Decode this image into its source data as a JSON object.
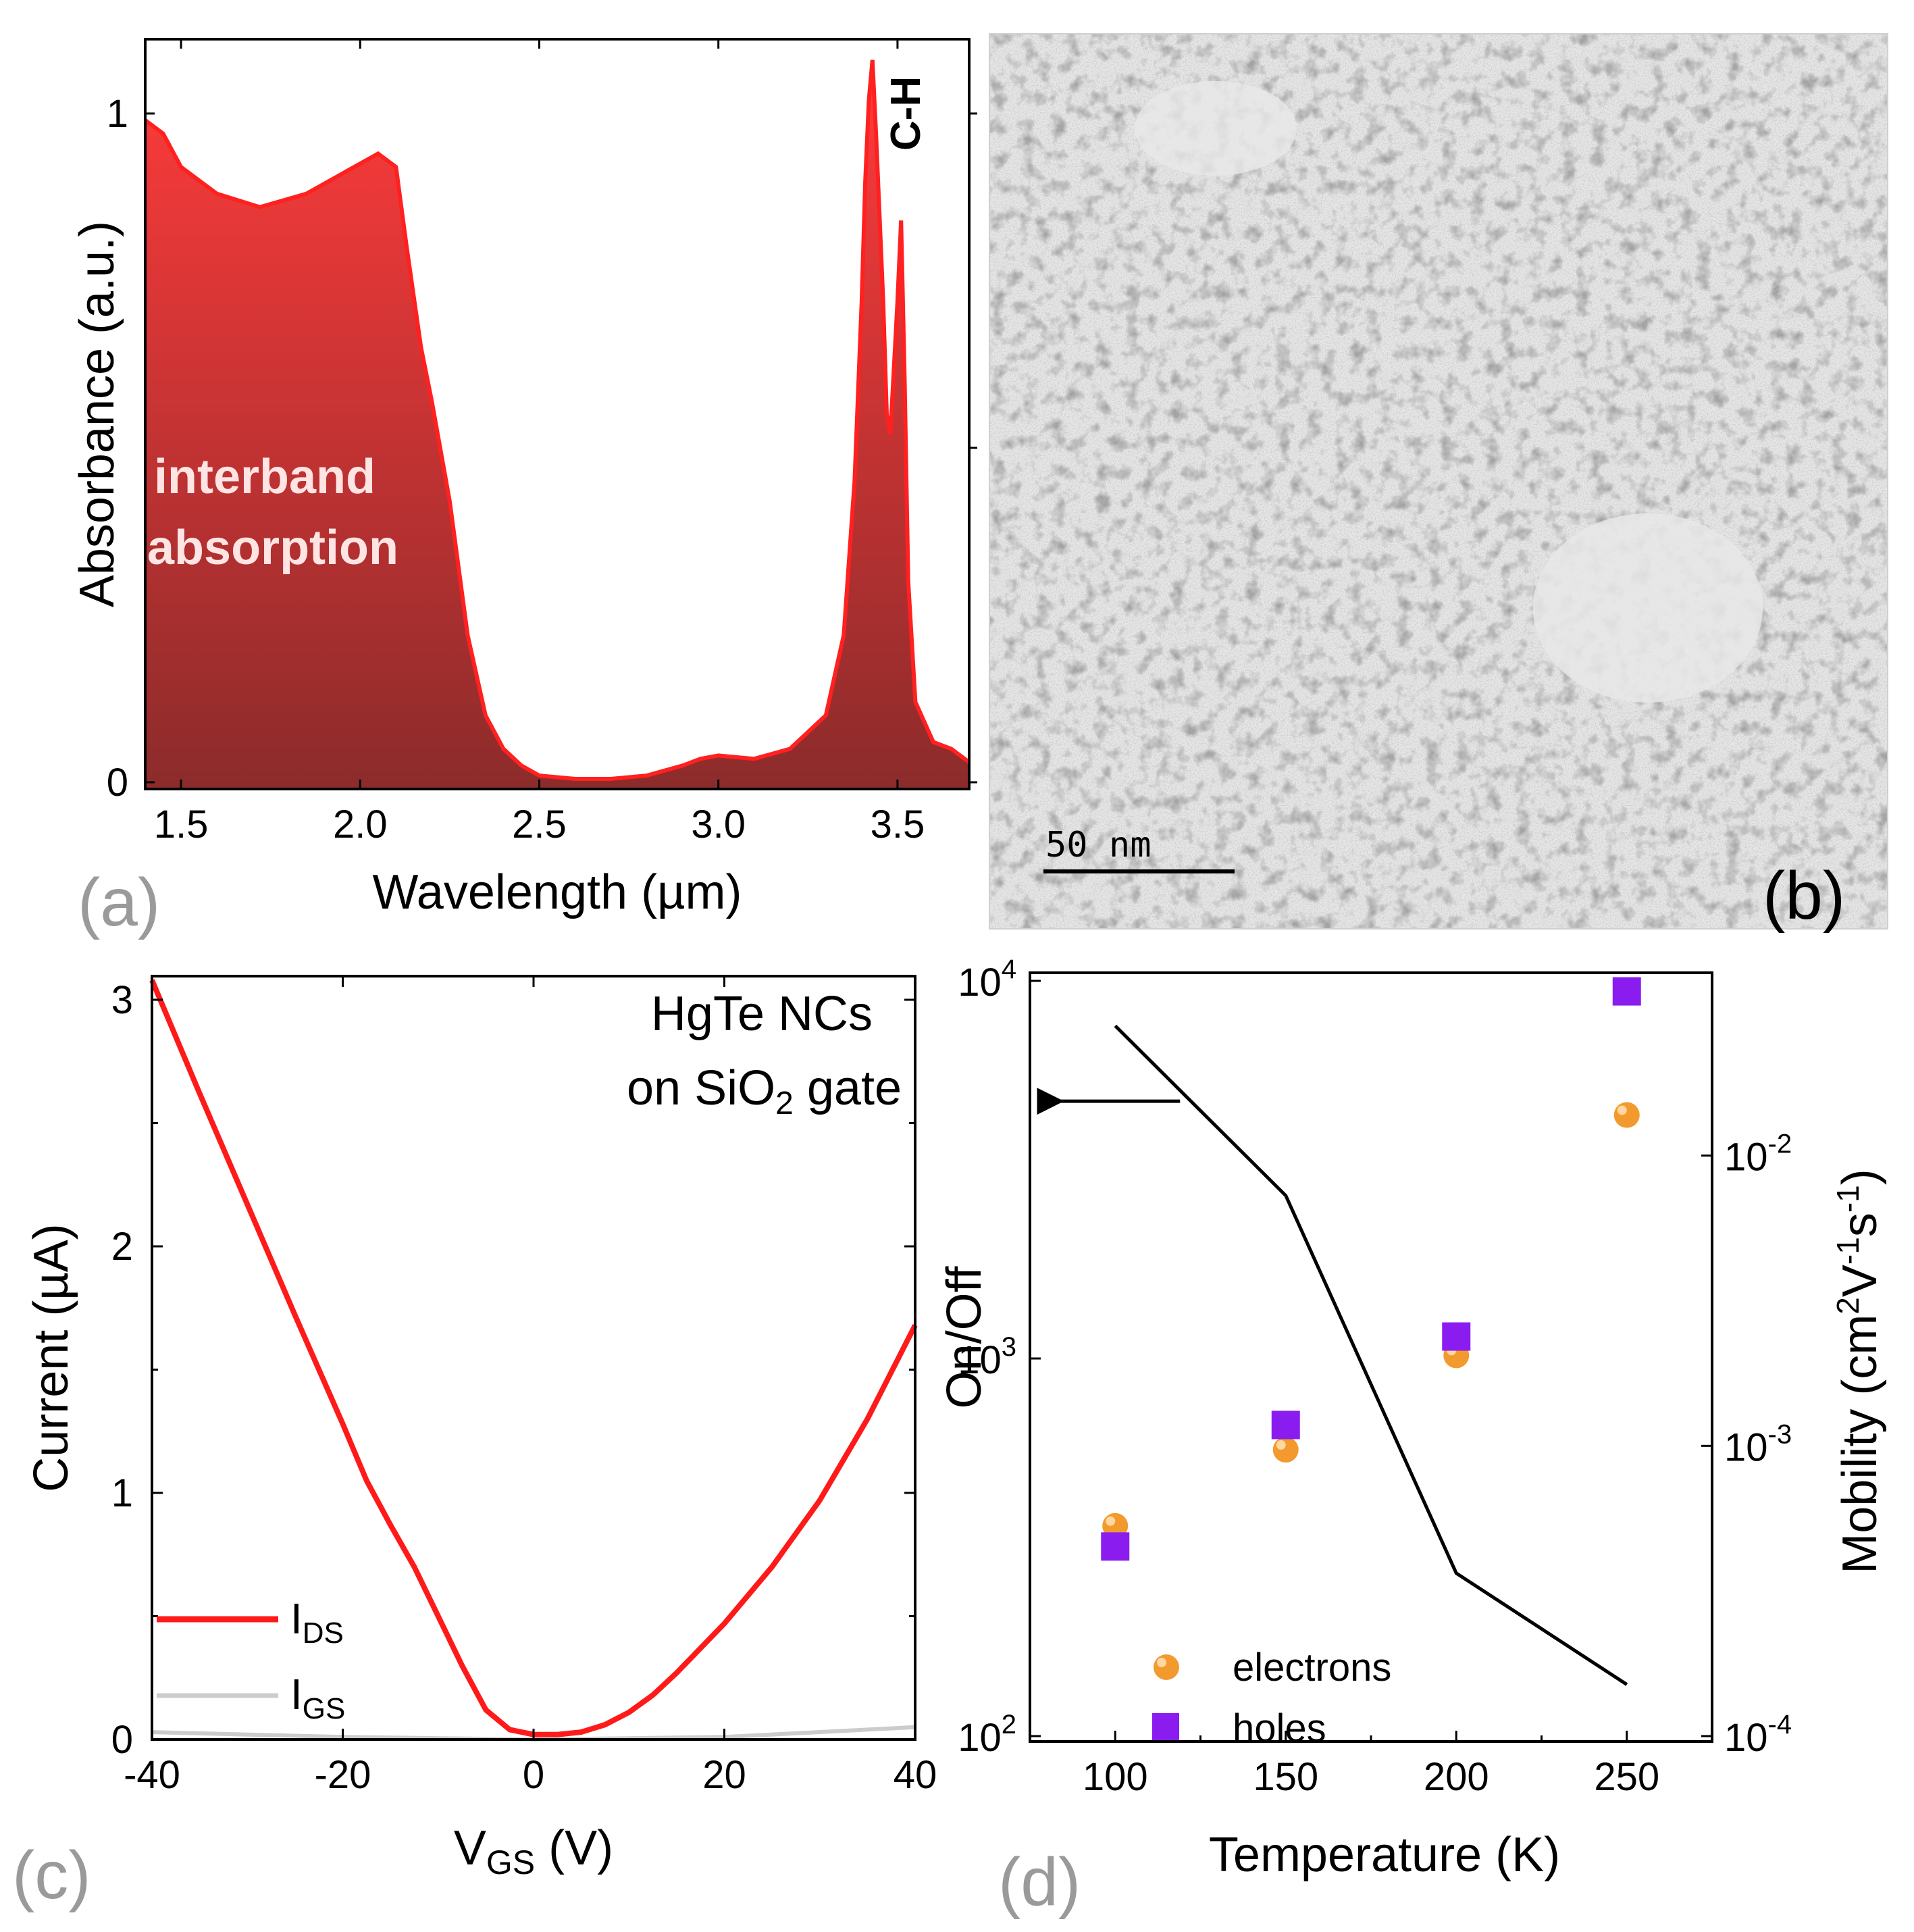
{
  "panels": {
    "a": {
      "label": "(a)",
      "annotations": {
        "interband_line1": "interband",
        "interband_line2": "absorption",
        "ch": "C-H"
      },
      "colors": {
        "line": "#ff2020",
        "fill_top": "#ff3b3b",
        "fill_bottom": "#8c2b2b"
      }
    },
    "b": {
      "label": "(b)",
      "scale_bar": "50 nm"
    },
    "c": {
      "label": "(c)",
      "annotation_line1": "HgTe NCs",
      "annotation_line2_pre": "on SiO",
      "annotation_line2_sub": "2",
      "annotation_line2_post": " gate",
      "legend": [
        {
          "main": "I",
          "sub": "DS",
          "color": "#ff1a1a"
        },
        {
          "main": "I",
          "sub": "GS",
          "color": "#cccccc"
        }
      ]
    },
    "d": {
      "label": "(d)",
      "legend": [
        {
          "name": "electrons",
          "color": "#f39a2e"
        },
        {
          "name": "holes",
          "color": "#8a1cf0"
        }
      ]
    }
  },
  "chart_data": [
    {
      "panel": "a",
      "type": "area",
      "title": "",
      "xlabel": "Wavelength (µm)",
      "ylabel": "Absorbance (a.u.)",
      "xlim": [
        1.4,
        3.7
      ],
      "ylim": [
        0,
        1.1
      ],
      "xticks": [
        1.5,
        2.0,
        2.5,
        3.0,
        3.5
      ],
      "xtick_labels": [
        "1.5",
        "2.0",
        "2.5",
        "3.0",
        "3.5"
      ],
      "yticks": [
        0,
        1
      ],
      "ytick_labels": [
        "0",
        "1"
      ],
      "series": [
        {
          "name": "absorbance",
          "x": [
            1.4,
            1.45,
            1.5,
            1.6,
            1.72,
            1.85,
            1.95,
            2.05,
            2.1,
            2.13,
            2.17,
            2.2,
            2.25,
            2.3,
            2.35,
            2.4,
            2.45,
            2.5,
            2.6,
            2.7,
            2.8,
            2.9,
            2.95,
            3.0,
            3.1,
            3.2,
            3.3,
            3.35,
            3.38,
            3.4,
            3.41,
            3.42,
            3.43,
            3.44,
            3.46,
            3.47,
            3.48,
            3.5,
            3.51,
            3.52,
            3.53,
            3.55,
            3.6,
            3.65,
            3.7
          ],
          "y": [
            0.99,
            0.97,
            0.92,
            0.88,
            0.86,
            0.88,
            0.91,
            0.94,
            0.92,
            0.8,
            0.65,
            0.57,
            0.42,
            0.22,
            0.1,
            0.05,
            0.025,
            0.01,
            0.005,
            0.005,
            0.01,
            0.025,
            0.035,
            0.04,
            0.035,
            0.05,
            0.1,
            0.22,
            0.45,
            0.72,
            0.9,
            1.02,
            1.08,
            0.97,
            0.72,
            0.55,
            0.52,
            0.72,
            0.84,
            0.6,
            0.3,
            0.12,
            0.06,
            0.05,
            0.03
          ]
        }
      ]
    },
    {
      "panel": "c",
      "type": "line",
      "title": "",
      "xlabel_pre": "V",
      "xlabel_sub": "GS",
      "xlabel_post": " (V)",
      "ylabel": "Current (µA)",
      "xlim": [
        -40,
        40
      ],
      "ylim": [
        0,
        3.1
      ],
      "xticks": [
        -40,
        -20,
        0,
        20,
        40
      ],
      "xtick_labels": [
        "-40",
        "-20",
        "0",
        "20",
        "40"
      ],
      "yticks": [
        0,
        1,
        2,
        3
      ],
      "ytick_labels": [
        "0",
        "1",
        "2",
        "3"
      ],
      "series": [
        {
          "name": "IDS",
          "x": [
            -40,
            -35,
            -30,
            -25,
            -20,
            -17.5,
            -15,
            -12.5,
            -10,
            -7.5,
            -5,
            -2.5,
            0,
            2.5,
            5,
            7.5,
            10,
            12.5,
            15,
            17.5,
            20,
            25,
            30,
            35,
            40
          ],
          "y": [
            3.08,
            2.62,
            2.17,
            1.72,
            1.28,
            1.05,
            0.87,
            0.7,
            0.5,
            0.3,
            0.12,
            0.04,
            0.02,
            0.02,
            0.03,
            0.06,
            0.11,
            0.18,
            0.27,
            0.37,
            0.47,
            0.7,
            0.97,
            1.3,
            1.68
          ]
        },
        {
          "name": "IGS",
          "x": [
            -40,
            -20,
            0,
            20,
            40
          ],
          "y": [
            0.03,
            0.01,
            0.0,
            0.01,
            0.05
          ]
        }
      ]
    },
    {
      "panel": "d",
      "type": "line+scatter",
      "title": "",
      "xlabel": "Temperature (K)",
      "ylabel": "On/Off",
      "ylabel_right_pre": "Mobility (cm",
      "ylabel_right_sup1": "2",
      "ylabel_right_mid1": "V",
      "ylabel_right_sup2": "-1",
      "ylabel_right_mid2": "s",
      "ylabel_right_sup3": "-1",
      "ylabel_right_post": ")",
      "xlim": [
        75,
        275
      ],
      "ylim_left": [
        100,
        10000
      ],
      "ylim_right": [
        0.0001,
        0.04
      ],
      "yscale": "log",
      "xticks": [
        100,
        150,
        200,
        250
      ],
      "xtick_labels": [
        "100",
        "150",
        "200",
        "250"
      ],
      "yticks_left": [
        100,
        1000,
        10000
      ],
      "ytick_left_labels": [
        {
          "base": "10",
          "exp": "2"
        },
        {
          "base": "10",
          "exp": "3"
        },
        {
          "base": "10",
          "exp": "4"
        }
      ],
      "yticks_right": [
        0.0001,
        0.001,
        0.01
      ],
      "ytick_right_labels": [
        {
          "base": "10",
          "exp": "-4"
        },
        {
          "base": "10",
          "exp": "-3"
        },
        {
          "base": "10",
          "exp": "-2"
        }
      ],
      "series": [
        {
          "name": "On/Off",
          "axis": "left",
          "x": [
            100,
            150,
            200,
            250
          ],
          "y": [
            7600,
            2700,
            270,
            137
          ]
        },
        {
          "name": "electrons",
          "axis": "right",
          "x": [
            100,
            150,
            200,
            250
          ],
          "y": [
            0.00053,
            0.00097,
            0.00205,
            0.0138
          ]
        },
        {
          "name": "holes",
          "axis": "right",
          "x": [
            100,
            150,
            200,
            250
          ],
          "y": [
            0.00045,
            0.00118,
            0.00238,
            0.0368
          ]
        }
      ],
      "arrow": {
        "direction": "left",
        "at_y": 4800
      }
    }
  ]
}
